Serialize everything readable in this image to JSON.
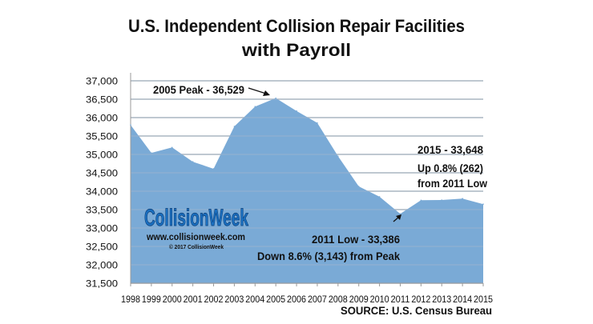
{
  "chart_data": {
    "type": "area",
    "title": [
      "U.S. Independent Collision Repair Facilities",
      "with Payroll"
    ],
    "xlabel": "",
    "ylabel": "",
    "categories": [
      "1998",
      "1999",
      "2000",
      "2001",
      "2002",
      "2003",
      "2004",
      "2005",
      "2006",
      "2007",
      "2008",
      "2009",
      "2010",
      "2011",
      "2012",
      "2013",
      "2014",
      "2015"
    ],
    "values": [
      35800,
      35040,
      35190,
      34800,
      34610,
      35760,
      36300,
      36529,
      36180,
      35855,
      34950,
      34130,
      33850,
      33386,
      33755,
      33760,
      33800,
      33648
    ],
    "ylim": [
      31500,
      37000
    ],
    "yticks": [
      "31,500",
      "32,000",
      "32,500",
      "33,000",
      "33,500",
      "34,000",
      "34,500",
      "35,000",
      "35,500",
      "36,000",
      "36,500",
      "37,000"
    ],
    "grid": true,
    "fill_color": "#7aaad6",
    "annotations": {
      "peak": "2005 Peak - 36,529",
      "low_line1": "2011 Low - 33,386",
      "low_line2": "Down 8.6% (3,143) from Peak",
      "latest_line1": "2015 - 33,648",
      "latest_line2": "Up 0.8% (262)",
      "latest_line3": "from 2011 Low"
    },
    "source": "SOURCE: U.S. Census Bureau"
  },
  "logo": {
    "name": "CollisionWeek",
    "url": "www.collisionweek.com",
    "copyright": "© 2017 CollisionWeek",
    "color": "#1a6fc0"
  }
}
